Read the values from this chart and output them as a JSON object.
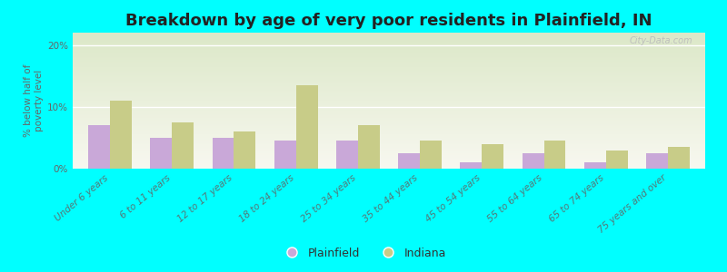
{
  "title": "Breakdown by age of very poor residents in Plainfield, IN",
  "categories": [
    "Under 6 years",
    "6 to 11 years",
    "12 to 17 years",
    "18 to 24 years",
    "25 to 34 years",
    "35 to 44 years",
    "45 to 54 years",
    "55 to 64 years",
    "65 to 74 years",
    "75 years and over"
  ],
  "plainfield_values": [
    7.0,
    5.0,
    5.0,
    4.5,
    4.5,
    2.5,
    1.0,
    2.5,
    1.0,
    2.5
  ],
  "indiana_values": [
    11.0,
    7.5,
    6.0,
    13.5,
    7.0,
    4.5,
    4.0,
    4.5,
    3.0,
    3.5
  ],
  "plainfield_color": "#c9a8d8",
  "indiana_color": "#c8cc88",
  "background_color": "#00ffff",
  "plot_bg_top": "#dce8c8",
  "plot_bg_bottom": "#f8f8f0",
  "ylabel": "% below half of\npoverty level",
  "ylim": [
    0,
    22
  ],
  "yticks": [
    0,
    10,
    20
  ],
  "ytick_labels": [
    "0%",
    "10%",
    "20%"
  ],
  "title_fontsize": 13,
  "label_fontsize": 7.5,
  "bar_width": 0.35,
  "watermark": "City-Data.com"
}
